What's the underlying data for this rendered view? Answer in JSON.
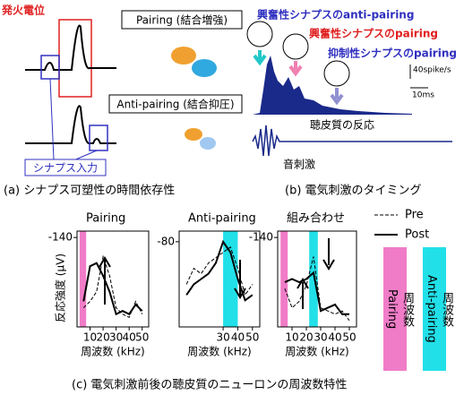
{
  "panel_a": {
    "spike_label": "発火電位",
    "synapse_label": "シナプス入力",
    "pairing_label": "Pairing (結合増強)",
    "anti_pairing_label": "Anti-pairing (結合抑圧)",
    "caption": "(a) シナプス可塑性の時間依存性"
  },
  "panel_b": {
    "labels": [
      "興奮性シナプスのanti-pairing",
      "興奮性シナプスのpairing",
      "抑制性シナプスのpairing"
    ],
    "scale_y": "40spike/s",
    "scale_x": "10ms",
    "response_label": "聴皮質の反応",
    "stimulus_label": "音刺激",
    "caption": "(b) 電気刺激のタイミング"
  },
  "panel_c": {
    "caption": "(c) 電気刺激前後の聴皮質のニューロンの周波数特性",
    "side_legend": [
      {
        "lines": [
          "Pairing",
          "周波数"
        ],
        "color": "#f07cc8"
      },
      {
        "lines": [
          "Anti-pairing",
          "周波数"
        ],
        "color": "#22e0e8"
      }
    ]
  },
  "chart_data": [
    {
      "type": "line",
      "title": "Pairing",
      "xlabel": "周波数 (kHz)",
      "ylabel": "反応強度 (μV)",
      "x": [
        5,
        10,
        15,
        20,
        25,
        30,
        35,
        40,
        45,
        50
      ],
      "xlim": [
        0,
        55
      ],
      "xticks": [
        10,
        20,
        30,
        40,
        50
      ],
      "ylim": [
        0,
        -150
      ],
      "yticks": [
        -140
      ],
      "bands": [
        {
          "from": 2,
          "to": 7,
          "color": "#f07cc8"
        }
      ],
      "series": [
        {
          "name": "Pre",
          "color": "#000000",
          "dashed": true,
          "values": [
            -30,
            -40,
            -55,
            -110,
            -80,
            -30,
            -20,
            -15,
            -40,
            -20
          ]
        },
        {
          "name": "Post",
          "color": "#000000",
          "dashed": false,
          "values": [
            -40,
            -95,
            -100,
            -80,
            -55,
            -20,
            -25,
            -20,
            -35,
            -25
          ]
        }
      ]
    },
    {
      "type": "line",
      "title": "Anti-pairing",
      "xlabel": "周波数 (kHz)",
      "x": [
        5,
        10,
        15,
        20,
        25,
        30,
        35,
        40,
        45,
        50
      ],
      "xlim": [
        0,
        55
      ],
      "xticks": [
        30,
        40,
        50
      ],
      "ylim": [
        0,
        -90
      ],
      "yticks": [
        -80
      ],
      "bands": [
        {
          "from": 30,
          "to": 40,
          "color": "#22e0e8"
        }
      ],
      "series": [
        {
          "name": "Pre",
          "color": "#000000",
          "dashed": true,
          "values": [
            -40,
            -55,
            -50,
            -60,
            -65,
            -70,
            -75,
            -55,
            -30,
            -40
          ]
        },
        {
          "name": "Post",
          "color": "#000000",
          "dashed": false,
          "values": [
            -30,
            -40,
            -45,
            -50,
            -60,
            -80,
            -70,
            -45,
            -25,
            -30
          ]
        }
      ]
    },
    {
      "type": "line",
      "title": "組み合わせ",
      "xlabel": "周波数 (kHz)",
      "x": [
        5,
        10,
        15,
        20,
        25,
        30,
        35,
        40,
        45,
        50
      ],
      "xlim": [
        0,
        55
      ],
      "xticks": [
        10,
        20,
        30,
        40,
        50
      ],
      "ylim": [
        0,
        -150
      ],
      "yticks": [
        -140
      ],
      "bands": [
        {
          "from": 2,
          "to": 7,
          "color": "#f07cc8"
        },
        {
          "from": 22,
          "to": 28,
          "color": "#22e0e8"
        }
      ],
      "series": [
        {
          "name": "Pre",
          "color": "#000000",
          "dashed": true,
          "values": [
            -60,
            -30,
            -40,
            -65,
            -110,
            -30,
            -25,
            -20,
            -25,
            -10
          ]
        },
        {
          "name": "Post",
          "color": "#000000",
          "dashed": false,
          "values": [
            -70,
            -75,
            -70,
            -75,
            -85,
            -25,
            -30,
            -35,
            -20,
            -20
          ]
        }
      ]
    }
  ]
}
